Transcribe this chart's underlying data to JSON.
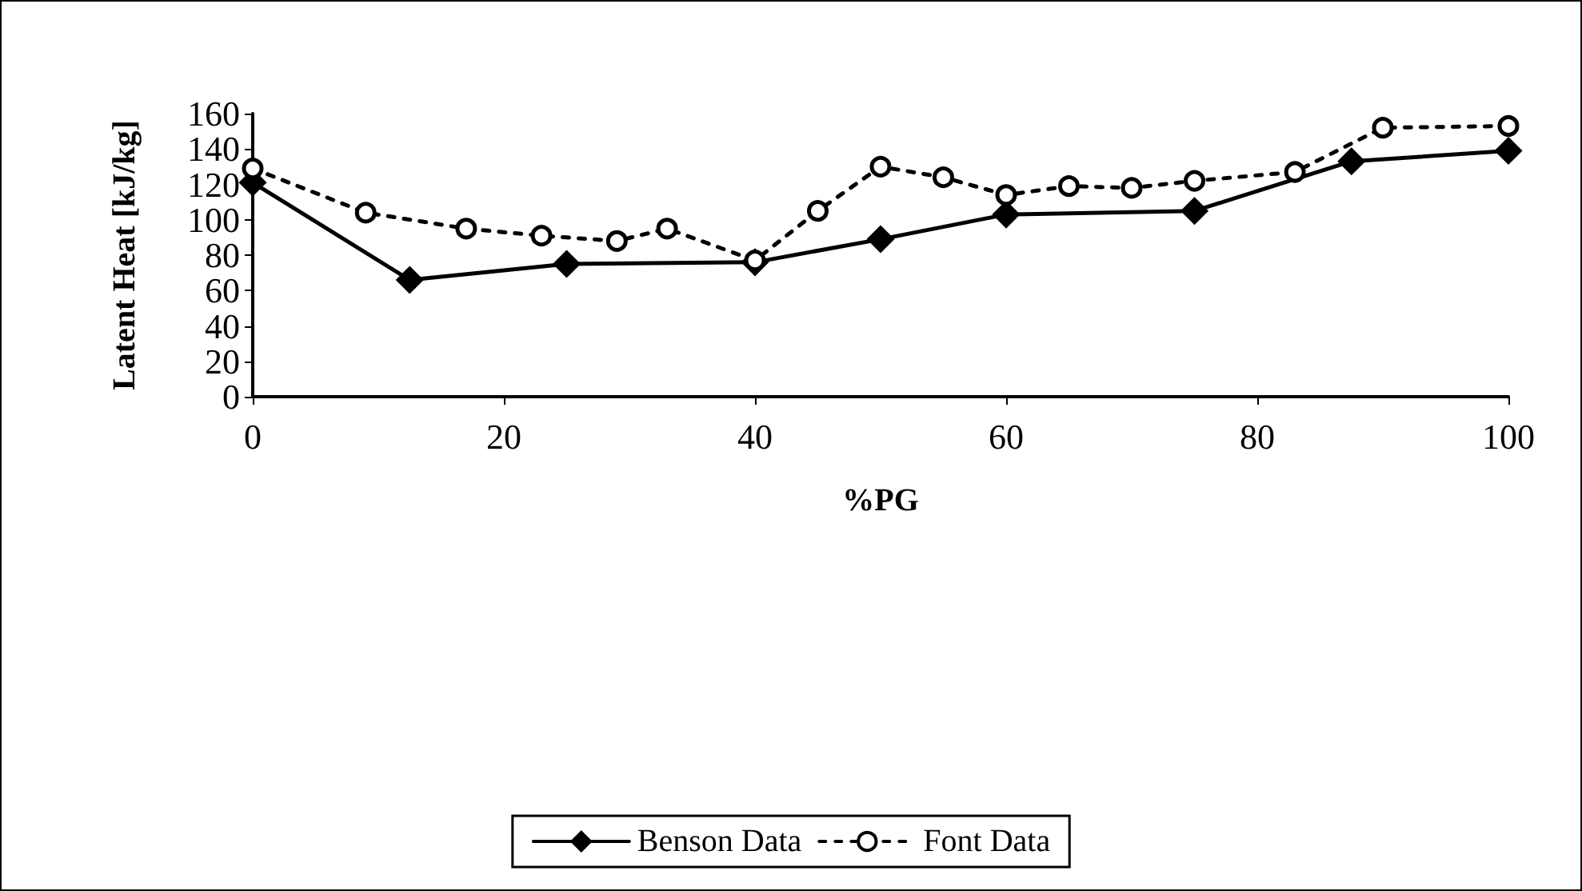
{
  "chart_data": {
    "type": "line",
    "xlabel": "%PG",
    "ylabel": "Latent Heat [kJ/kg]",
    "xlim": [
      0,
      100
    ],
    "xticks": [
      0,
      20,
      40,
      60,
      80,
      100
    ],
    "ylim": [
      0,
      160
    ],
    "yticks": [
      0,
      20,
      40,
      60,
      80,
      100,
      120,
      140,
      160
    ],
    "grid": false,
    "legend": "bottom",
    "series": [
      {
        "name": "Benson Data",
        "color": "#000000",
        "marker": "diamond",
        "line_style": "solid",
        "x": [
          0,
          12.5,
          25,
          40,
          50,
          60,
          75,
          87.5,
          100
        ],
        "values": [
          121,
          66,
          75,
          76,
          89,
          103,
          105,
          133,
          139
        ]
      },
      {
        "name": "Font Data",
        "color": "#000000",
        "marker": "circle",
        "line_style": "dotted",
        "x": [
          0,
          9,
          17,
          23,
          29,
          33,
          40,
          45,
          50,
          55,
          60,
          65,
          70,
          75,
          83,
          90,
          100
        ],
        "values": [
          129,
          104,
          95,
          91,
          88,
          95,
          77,
          105,
          130,
          124,
          114,
          119,
          118,
          122,
          127,
          152,
          153
        ]
      }
    ]
  }
}
